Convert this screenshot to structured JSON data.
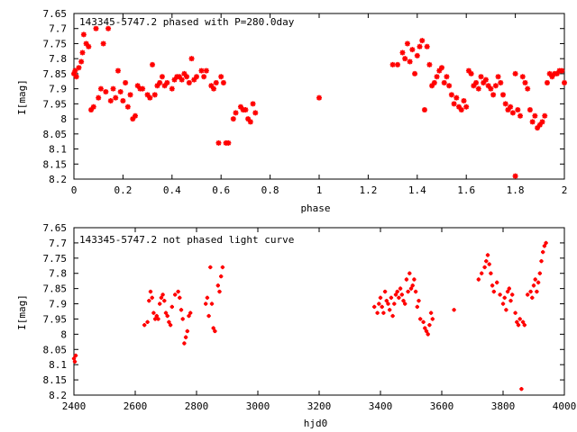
{
  "chart_data": [
    {
      "type": "scatter",
      "title": "143345-5747.2 phased with P=280.0day",
      "xlabel": "phase",
      "ylabel": "I[mag]",
      "xlim": [
        0,
        2
      ],
      "ylim": [
        7.65,
        8.2
      ],
      "y_inverted": true,
      "xticks": [
        "0",
        "0.2",
        "0.4",
        "0.6",
        "0.8",
        "1",
        "1.2",
        "1.4",
        "1.6",
        "1.8",
        "2"
      ],
      "xtick_values": [
        0,
        0.2,
        0.4,
        0.6,
        0.8,
        1.0,
        1.2,
        1.4,
        1.6,
        1.8,
        2.0
      ],
      "yticks": [
        "7.65",
        "7.7",
        "7.75",
        "7.8",
        "7.85",
        "7.9",
        "7.95",
        "8",
        "8.05",
        "8.1",
        "8.15",
        "8.2"
      ],
      "ytick_values": [
        7.65,
        7.7,
        7.75,
        7.8,
        7.85,
        7.9,
        7.95,
        8.0,
        8.05,
        8.1,
        8.15,
        8.2
      ],
      "marker_color": "#ff0000",
      "x": [
        0.0,
        0.005,
        0.01,
        0.02,
        0.03,
        0.035,
        0.04,
        0.05,
        0.06,
        0.07,
        0.08,
        0.09,
        0.1,
        0.11,
        0.12,
        0.13,
        0.14,
        0.15,
        0.16,
        0.17,
        0.18,
        0.19,
        0.2,
        0.21,
        0.22,
        0.23,
        0.24,
        0.25,
        0.26,
        0.27,
        0.28,
        0.3,
        0.31,
        0.32,
        0.33,
        0.34,
        0.35,
        0.36,
        0.37,
        0.38,
        0.4,
        0.41,
        0.42,
        0.43,
        0.44,
        0.45,
        0.46,
        0.47,
        0.48,
        0.49,
        0.5,
        0.52,
        0.53,
        0.54,
        0.56,
        0.57,
        0.58,
        0.59,
        0.6,
        0.61,
        0.62,
        0.63,
        0.65,
        0.66,
        0.68,
        0.69,
        0.7,
        0.71,
        0.72,
        0.73,
        0.74,
        1.0,
        1.3,
        1.32,
        1.34,
        1.35,
        1.36,
        1.37,
        1.38,
        1.39,
        1.4,
        1.41,
        1.42,
        1.43,
        1.44,
        1.45,
        1.46,
        1.47,
        1.48,
        1.49,
        1.5,
        1.51,
        1.52,
        1.53,
        1.54,
        1.55,
        1.56,
        1.57,
        1.58,
        1.59,
        1.6,
        1.61,
        1.62,
        1.63,
        1.64,
        1.65,
        1.66,
        1.67,
        1.68,
        1.69,
        1.7,
        1.71,
        1.72,
        1.73,
        1.74,
        1.75,
        1.76,
        1.77,
        1.78,
        1.79,
        1.8,
        1.81,
        1.82,
        1.83,
        1.84,
        1.85,
        1.86,
        1.87,
        1.88,
        1.89,
        1.9,
        1.91,
        1.92,
        1.93,
        1.94,
        1.95,
        1.96,
        1.97,
        1.98,
        1.99,
        2.0
      ],
      "y": [
        7.85,
        7.84,
        7.86,
        7.83,
        7.81,
        7.78,
        7.72,
        7.75,
        7.76,
        7.97,
        7.96,
        7.7,
        7.93,
        7.9,
        7.75,
        7.91,
        7.7,
        7.94,
        7.9,
        7.93,
        7.84,
        7.91,
        7.94,
        7.88,
        7.96,
        7.92,
        8.0,
        7.99,
        7.89,
        7.9,
        7.9,
        7.92,
        7.93,
        7.82,
        7.92,
        7.89,
        7.88,
        7.86,
        7.89,
        7.88,
        7.9,
        7.87,
        7.86,
        7.86,
        7.87,
        7.85,
        7.86,
        7.88,
        7.8,
        7.87,
        7.86,
        7.84,
        7.86,
        7.84,
        7.89,
        7.9,
        7.88,
        8.08,
        7.86,
        7.88,
        8.08,
        8.08,
        8.0,
        7.98,
        7.96,
        7.97,
        7.97,
        8.0,
        8.01,
        7.95,
        7.98,
        7.93,
        7.82,
        7.82,
        7.78,
        7.8,
        7.75,
        7.81,
        7.77,
        7.85,
        7.79,
        7.76,
        7.74,
        7.97,
        7.76,
        7.82,
        7.89,
        7.88,
        7.86,
        7.84,
        7.83,
        7.88,
        7.86,
        7.89,
        7.92,
        7.95,
        7.93,
        7.96,
        7.97,
        7.94,
        7.96,
        7.84,
        7.85,
        7.89,
        7.88,
        7.9,
        7.86,
        7.88,
        7.87,
        7.89,
        7.9,
        7.92,
        7.89,
        7.86,
        7.88,
        7.92,
        7.95,
        7.97,
        7.96,
        7.98,
        7.85,
        7.97,
        7.99,
        7.86,
        7.88,
        7.9,
        7.97,
        8.01,
        7.99,
        8.03,
        8.02,
        8.01,
        7.99,
        7.88,
        7.85,
        7.86,
        7.85,
        7.85,
        7.84,
        7.84,
        7.88
      ],
      "outliers": [
        {
          "x": 1.8,
          "y": 8.19
        }
      ]
    },
    {
      "type": "scatter",
      "title": "143345-5747.2 not phased light curve",
      "xlabel": "hjd0",
      "ylabel": "I[mag]",
      "xlim": [
        2400,
        4000
      ],
      "ylim": [
        7.65,
        8.2
      ],
      "y_inverted": true,
      "xticks": [
        "2400",
        "2600",
        "2800",
        "3000",
        "3200",
        "3400",
        "3600",
        "3800",
        "4000"
      ],
      "xtick_values": [
        2400,
        2600,
        2800,
        3000,
        3200,
        3400,
        3600,
        3800,
        4000
      ],
      "yticks": [
        "7.65",
        "7.7",
        "7.75",
        "7.8",
        "7.85",
        "7.9",
        "7.95",
        "8",
        "8.05",
        "8.1",
        "8.15",
        "8.2"
      ],
      "ytick_values": [
        7.65,
        7.7,
        7.75,
        7.8,
        7.85,
        7.9,
        7.95,
        8.0,
        8.05,
        8.1,
        8.15,
        8.2
      ],
      "marker_color": "#ff0000",
      "x": [
        2400,
        2403,
        2406,
        2630,
        2640,
        2645,
        2650,
        2655,
        2660,
        2665,
        2670,
        2675,
        2680,
        2685,
        2690,
        2695,
        2700,
        2705,
        2710,
        2715,
        2720,
        2730,
        2740,
        2745,
        2750,
        2755,
        2760,
        2765,
        2770,
        2775,
        2780,
        2830,
        2835,
        2840,
        2845,
        2850,
        2855,
        2860,
        2870,
        2875,
        2880,
        2885,
        3380,
        3390,
        3395,
        3400,
        3405,
        3410,
        3415,
        3420,
        3425,
        3430,
        3435,
        3440,
        3445,
        3450,
        3455,
        3460,
        3465,
        3470,
        3475,
        3480,
        3485,
        3490,
        3495,
        3500,
        3505,
        3510,
        3515,
        3520,
        3525,
        3530,
        3540,
        3545,
        3550,
        3555,
        3560,
        3565,
        3570,
        3640,
        3720,
        3730,
        3740,
        3745,
        3750,
        3755,
        3760,
        3765,
        3770,
        3780,
        3790,
        3800,
        3805,
        3810,
        3815,
        3820,
        3825,
        3830,
        3840,
        3845,
        3850,
        3855,
        3860,
        3865,
        3870,
        3880,
        3890,
        3895,
        3900,
        3905,
        3910,
        3915,
        3920,
        3925,
        3930,
        3935,
        3940
      ],
      "y": [
        8.08,
        8.09,
        8.07,
        7.97,
        7.96,
        7.89,
        7.86,
        7.88,
        7.93,
        7.95,
        7.94,
        7.95,
        7.9,
        7.88,
        7.87,
        7.89,
        7.93,
        7.94,
        7.96,
        7.97,
        7.91,
        7.87,
        7.86,
        7.88,
        7.92,
        7.95,
        8.03,
        8.01,
        7.99,
        7.94,
        7.93,
        7.9,
        7.88,
        7.94,
        7.78,
        7.9,
        7.98,
        7.99,
        7.84,
        7.86,
        7.81,
        7.78,
        7.91,
        7.93,
        7.9,
        7.88,
        7.91,
        7.93,
        7.86,
        7.89,
        7.9,
        7.92,
        7.88,
        7.94,
        7.9,
        7.87,
        7.86,
        7.88,
        7.85,
        7.87,
        7.89,
        7.9,
        7.82,
        7.86,
        7.8,
        7.85,
        7.84,
        7.82,
        7.86,
        7.91,
        7.89,
        7.95,
        7.96,
        7.98,
        7.99,
        8.0,
        7.97,
        7.93,
        7.95,
        7.92,
        7.82,
        7.8,
        7.78,
        7.76,
        7.74,
        7.77,
        7.8,
        7.84,
        7.86,
        7.83,
        7.87,
        7.9,
        7.88,
        7.92,
        7.86,
        7.85,
        7.89,
        7.87,
        7.93,
        7.96,
        7.97,
        7.95,
        8.18,
        7.96,
        7.97,
        7.87,
        7.86,
        7.88,
        7.84,
        7.82,
        7.86,
        7.83,
        7.8,
        7.76,
        7.73,
        7.71,
        7.7
      ]
    }
  ]
}
